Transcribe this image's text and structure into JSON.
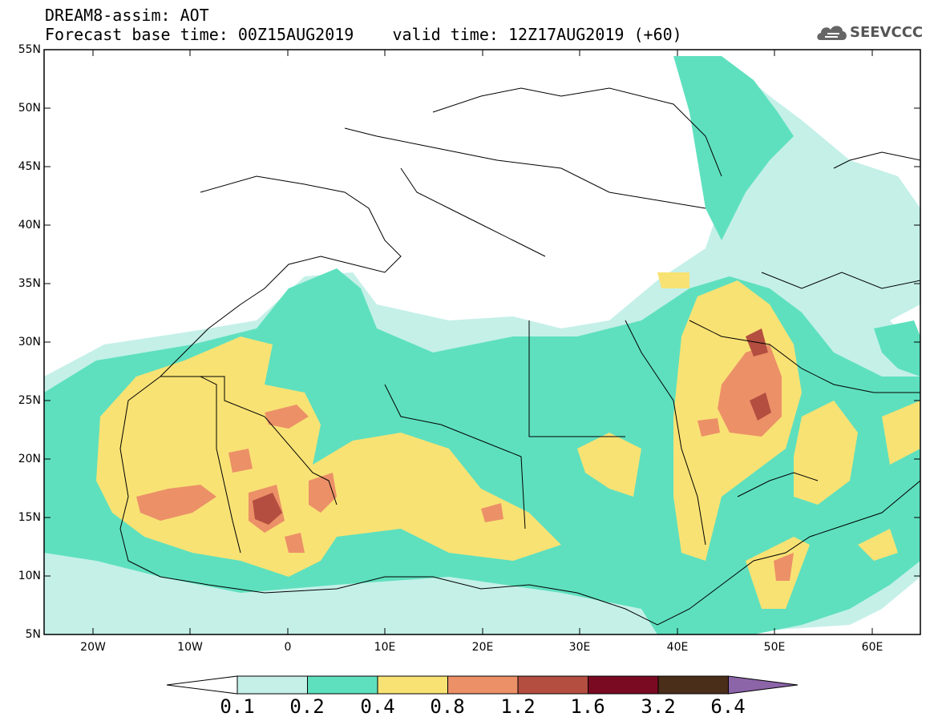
{
  "header": {
    "line1": "DREAM8-assim: AOT",
    "line2": "Forecast base time: 00Z15AUG2019    valid time: 12Z17AUG2019 (+60)"
  },
  "logo": {
    "text": "SEEVCCC",
    "icon": "cloud-logo-icon"
  },
  "map": {
    "lat_labels": [
      "55N",
      "50N",
      "45N",
      "40N",
      "35N",
      "30N",
      "25N",
      "20N",
      "15N",
      "10N",
      "5N"
    ],
    "lon_labels": [
      "20W",
      "10W",
      "0",
      "10E",
      "20E",
      "30E",
      "40E",
      "50E",
      "60E"
    ]
  },
  "legend": {
    "levels": [
      "0.1",
      "0.2",
      "0.4",
      "0.8",
      "1.2",
      "1.6",
      "3.2",
      "6.4"
    ],
    "colors": [
      "#ffffff",
      "#c4f0e8",
      "#5ee0be",
      "#f8e274",
      "#ec9068",
      "#b44e40",
      "#7a0a22",
      "#4a2e1a",
      "#8c64a8"
    ]
  }
}
